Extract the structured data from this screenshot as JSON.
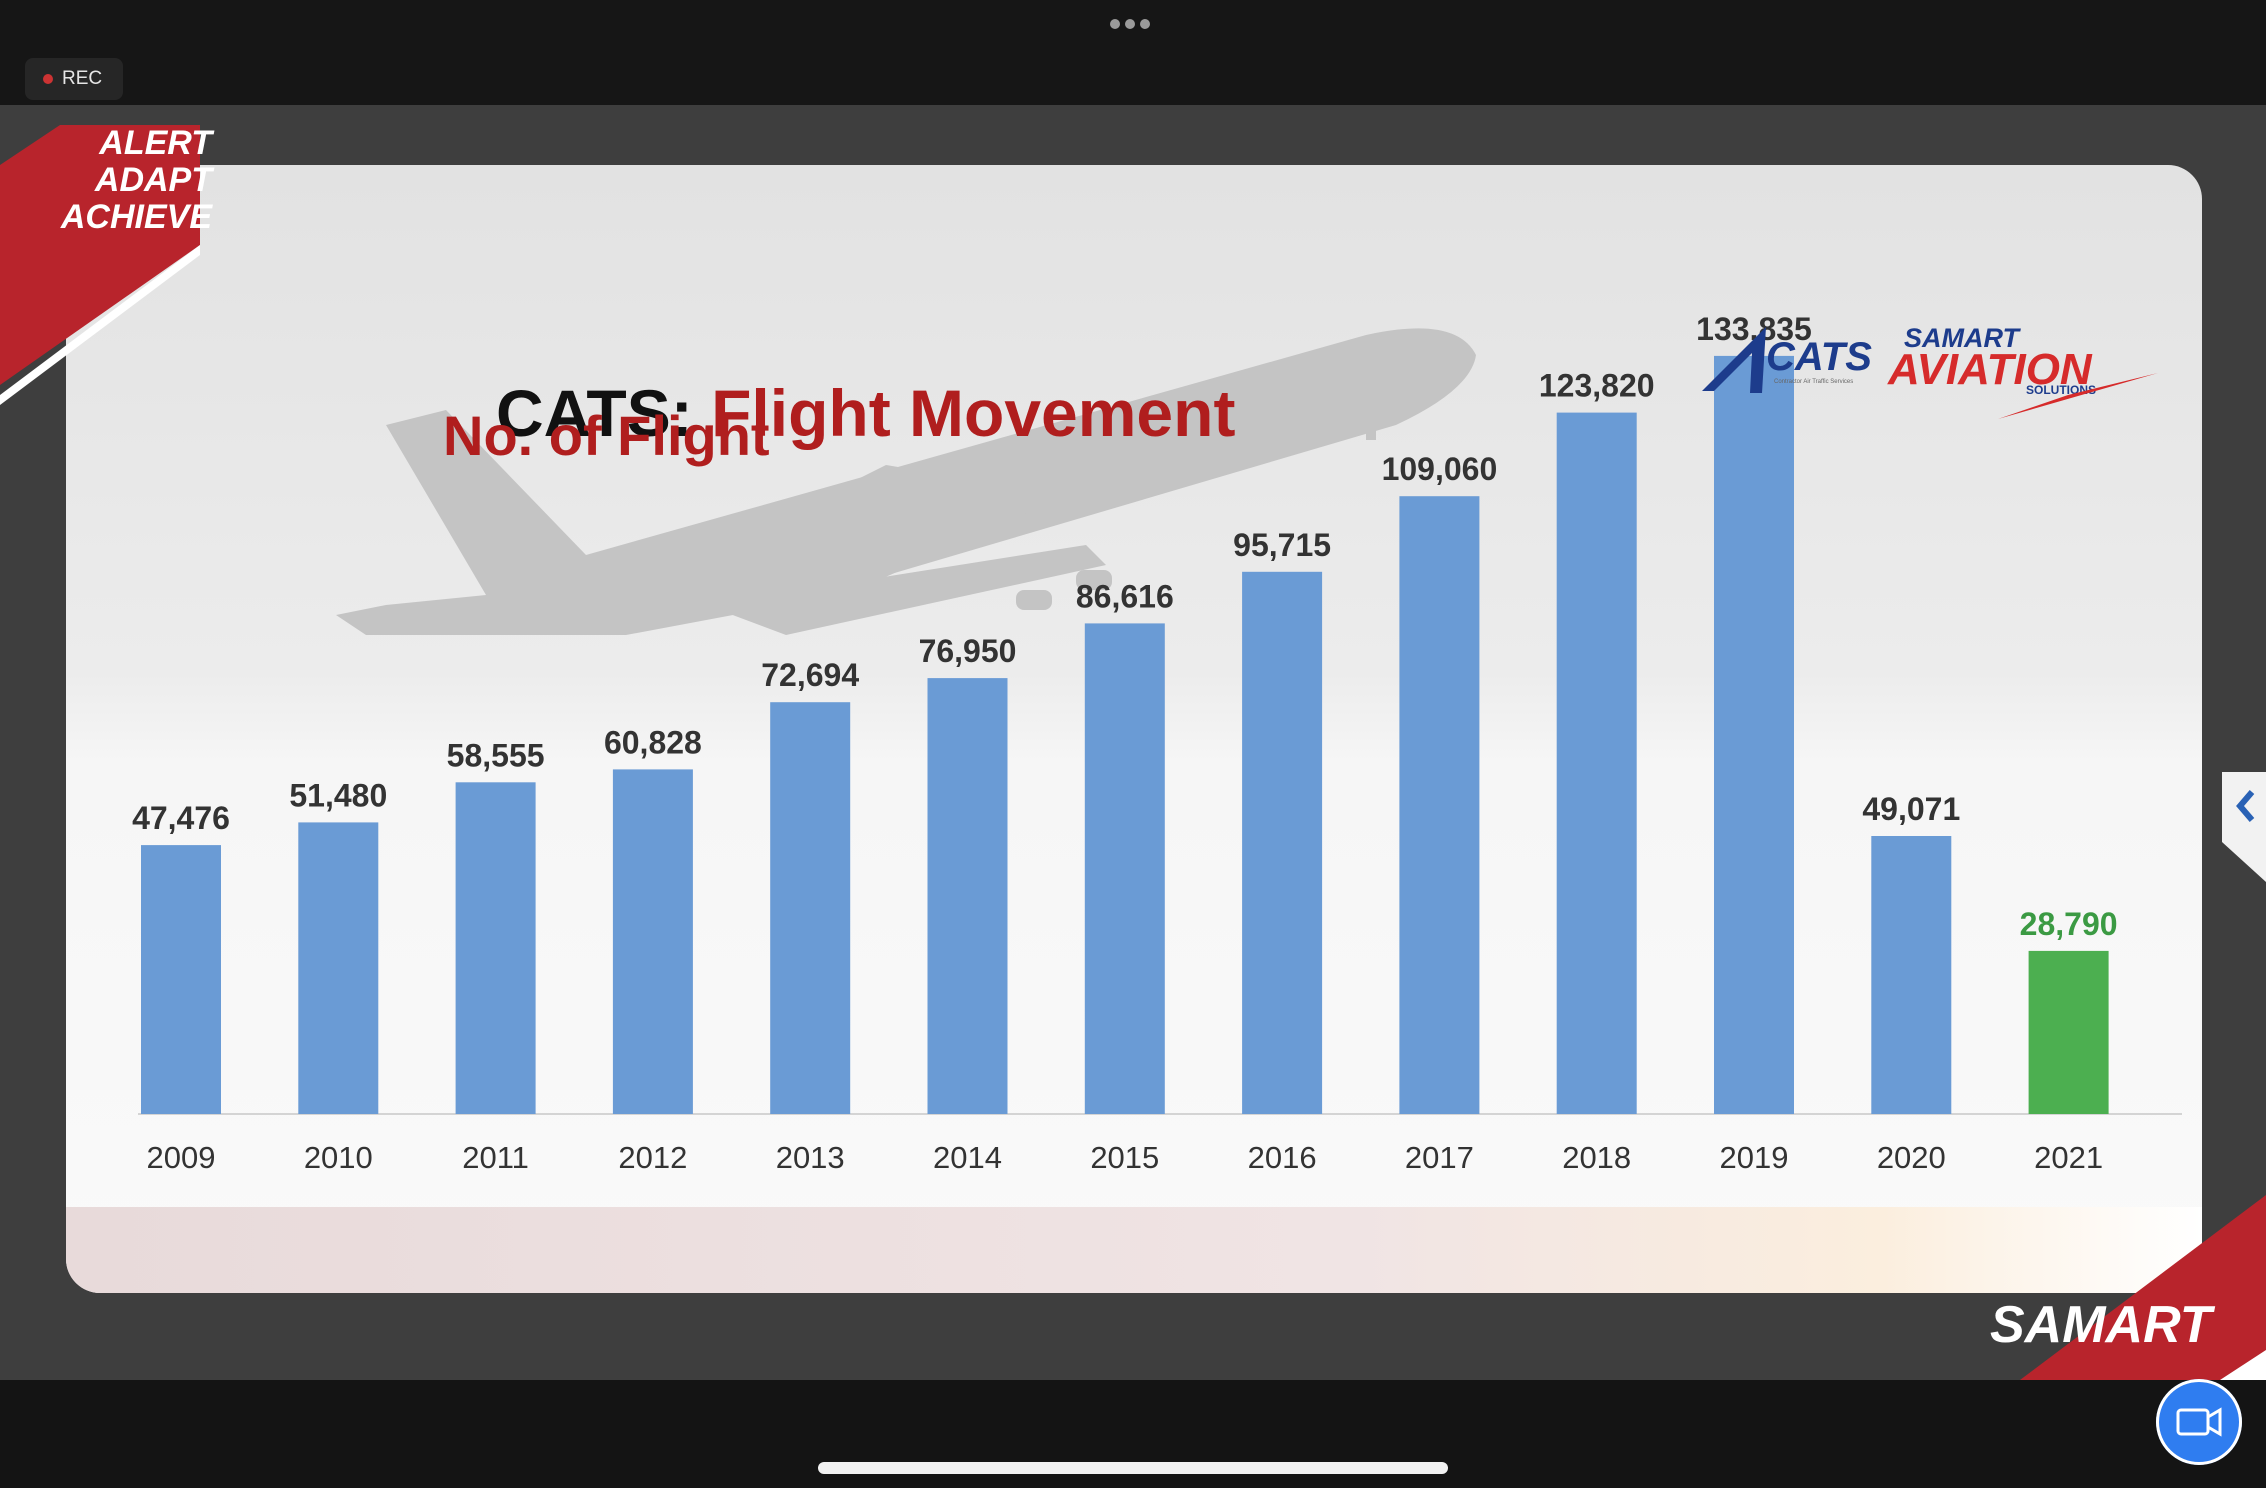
{
  "toolbar": {
    "rec_label": "REC"
  },
  "slide": {
    "badge_lines": [
      "ALERT",
      "ADAPT",
      "ACHIEVE"
    ],
    "title_prefix": "CATS:",
    "title_main": "Flight Movement",
    "logos": {
      "cats": "CATS",
      "cats_tagline": "Contractor Air Traffic Services",
      "samart_top": "SAMART",
      "samart_main": "AVIATION",
      "samart_sub": "SOLUTIONS",
      "samart_footer": "SAMART"
    }
  },
  "chart_data": {
    "type": "bar",
    "title": "No. of Flight",
    "categories": [
      "2009",
      "2010",
      "2011",
      "2012",
      "2013",
      "2014",
      "2015",
      "2016",
      "2017",
      "2018",
      "2019",
      "2020",
      "2021"
    ],
    "values": [
      47476,
      51480,
      58555,
      60828,
      72694,
      76950,
      86616,
      95715,
      109060,
      123820,
      133835,
      49071,
      28790
    ],
    "data_labels": [
      "47,476",
      "51,480",
      "58,555",
      "60,828",
      "72,694",
      "76,950",
      "86,616",
      "95,715",
      "109,060",
      "123,820",
      "133,835",
      "49,071",
      "28,790"
    ],
    "colors": {
      "default": "#6a9bd5",
      "highlight": "#4caf50",
      "highlight_label": "#3b9a43",
      "label": "#333333"
    },
    "highlight_categories": [
      "2021"
    ],
    "ylim": [
      0,
      146000
    ],
    "grid": false,
    "legend": "none"
  }
}
